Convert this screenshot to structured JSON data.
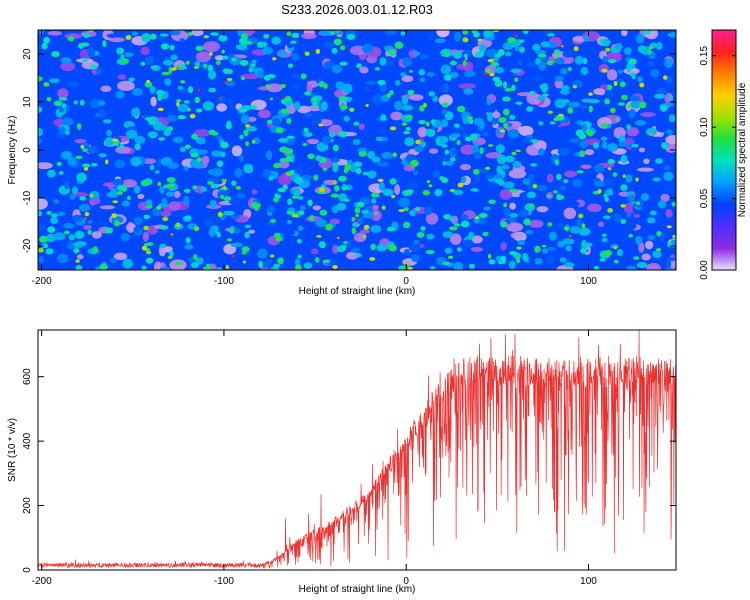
{
  "title": "S233.2026.003.01.12.R03",
  "chart_data": [
    {
      "type": "heatmap",
      "title": "S233.2026.003.01.12.R03",
      "xlabel": "Height of straight line (km)",
      "ylabel": "Frequency (Hz)",
      "xlim": [
        -202,
        148
      ],
      "ylim": [
        -25,
        25
      ],
      "x_ticks": [
        -200,
        -100,
        0,
        100
      ],
      "x_tick_labels": [
        "-200",
        "-100",
        "0",
        "100"
      ],
      "y_ticks": [
        -20,
        -10,
        0,
        10,
        20
      ],
      "y_tick_labels": [
        "-20",
        "-10",
        "0",
        "10",
        "20"
      ],
      "colorbar": {
        "label": "Normalized spectral amplitude",
        "range": [
          0,
          0.168
        ],
        "ticks": [
          0,
          0.05,
          0.1,
          0.15
        ],
        "tick_labels": [
          "0.00",
          "0.05",
          "0.10",
          "0.15"
        ],
        "colors": [
          "#e8e0ff",
          "#8b2be0",
          "#5030ff",
          "#0040ff",
          "#00a0ff",
          "#00e0c0",
          "#20e040",
          "#a0e000",
          "#ffd000",
          "#ff8000",
          "#ff2020",
          "#ff2090"
        ]
      },
      "description_values": "Noise-like spectral amplitude field, mostly 0.01–0.06 with sparse peaks near 0.10–0.16"
    },
    {
      "type": "line",
      "xlabel": "Height of straight line (km)",
      "ylabel": "SNR (10 * v/v)",
      "xlim": [
        -202,
        148
      ],
      "ylim": [
        0,
        745
      ],
      "x_ticks": [
        -200,
        -100,
        0,
        100
      ],
      "x_tick_labels": [
        "-200",
        "-100",
        "0",
        "100"
      ],
      "y_ticks": [
        0,
        200,
        400,
        600
      ],
      "y_tick_labels": [
        "0",
        "200",
        "400",
        "600"
      ],
      "series": [
        {
          "name": "SNR",
          "color": "#ee3030",
          "profile_x": [
            -202,
            -80,
            -70,
            -60,
            -50,
            -40,
            -30,
            -20,
            -10,
            0,
            10,
            20,
            30,
            40,
            60,
            80,
            100,
            120,
            148
          ],
          "profile_y": [
            15,
            15,
            40,
            90,
            120,
            150,
            190,
            240,
            320,
            400,
            480,
            560,
            610,
            620,
            620,
            610,
            620,
            620,
            620
          ]
        }
      ]
    }
  ]
}
